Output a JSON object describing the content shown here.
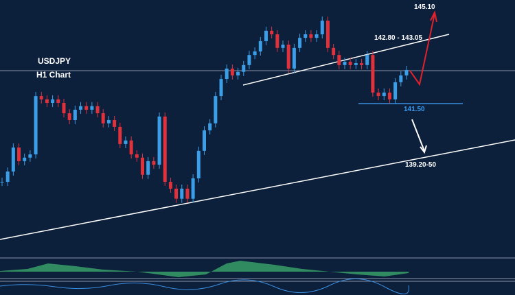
{
  "chart_data": {
    "type": "candlestick",
    "title": "USDJPY",
    "subtitle": "H1 Chart",
    "annotations": [
      "145.10",
      "142.80 - 143.05",
      "141.50",
      "139.20-50"
    ],
    "up_color": "#3c9ee6",
    "down_color": "#e0323c",
    "ylim": [
      135.85,
      145.3
    ],
    "values": [
      138.62,
      139.0,
      139.88,
      139.38,
      139.51,
      139.63,
      141.77,
      141.65,
      141.52,
      141.65,
      141.52,
      141.14,
      140.89,
      141.27,
      141.4,
      141.27,
      141.4,
      141.14,
      140.77,
      140.89,
      140.64,
      140.01,
      140.14,
      139.63,
      139.51,
      138.88,
      139.38,
      139.25,
      141.02,
      138.62,
      138.37,
      138.0,
      138.37,
      138.0,
      138.75,
      139.76,
      140.51,
      140.77,
      141.77,
      142.4,
      142.78,
      142.53,
      142.66,
      142.91,
      143.28,
      143.41,
      143.79,
      144.17,
      144.04,
      143.54,
      143.66,
      142.78,
      143.54,
      143.91,
      144.04,
      143.91,
      144.04,
      144.54,
      143.54,
      143.28,
      142.91,
      143.03,
      142.91,
      142.98,
      142.91,
      143.28,
      141.9,
      141.77,
      141.9,
      141.65,
      142.28,
      142.53,
      142.73
    ]
  }
}
